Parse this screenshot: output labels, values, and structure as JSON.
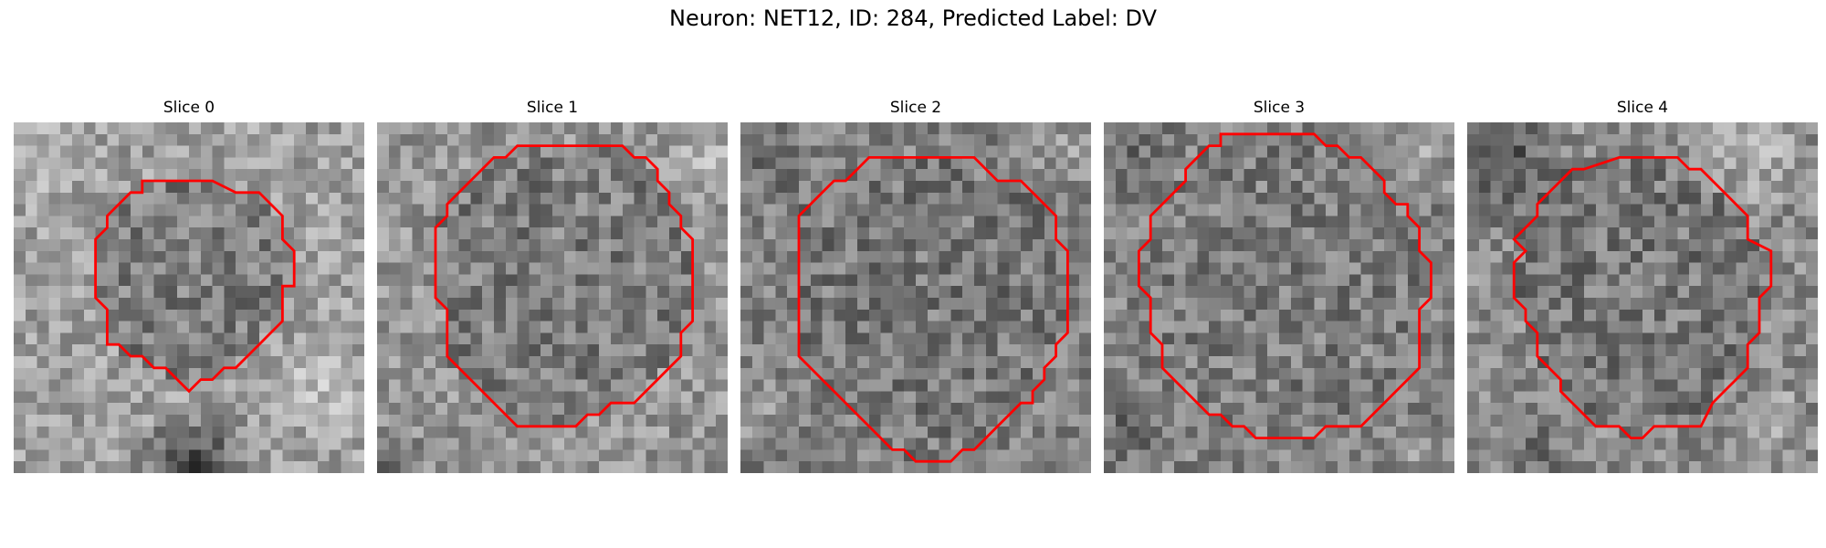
{
  "title": "Neuron: NET12, ID: 284, Predicted Label: DV",
  "contour_color": "#ff0000",
  "slices": [
    {
      "label": "Slice 0"
    },
    {
      "label": "Slice 1"
    },
    {
      "label": "Slice 2"
    },
    {
      "label": "Slice 3"
    },
    {
      "label": "Slice 4"
    }
  ]
}
